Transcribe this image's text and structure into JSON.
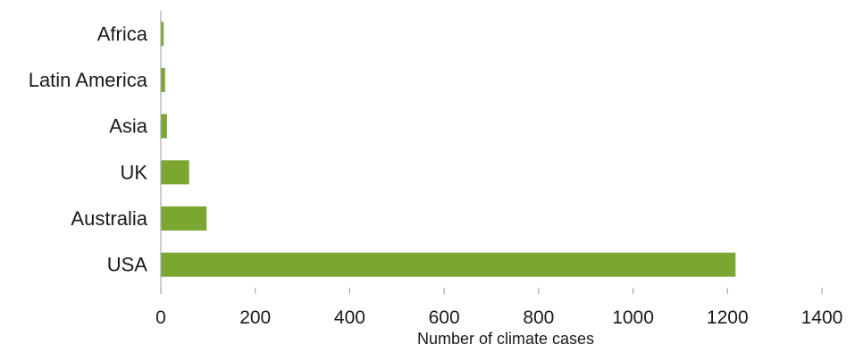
{
  "chart_data": {
    "type": "bar",
    "orientation": "horizontal",
    "title": "",
    "categories": [
      "Africa",
      "Latin America",
      "Asia",
      "UK",
      "Australia",
      "USA"
    ],
    "values": [
      6,
      9,
      13,
      60,
      97,
      1217
    ],
    "xlabel": "Number of climate cases",
    "ylabel": "",
    "xlim": [
      0,
      1400
    ],
    "xticks": [
      0,
      200,
      400,
      600,
      800,
      1000,
      1200,
      1400
    ],
    "xtick_labels": [
      "0",
      "200",
      "400",
      "600",
      "800",
      "1000",
      "1200",
      "1400"
    ],
    "grid": false,
    "legend": "none",
    "bar_color": "#7aa631",
    "axis_color": "#aaaaaa"
  }
}
